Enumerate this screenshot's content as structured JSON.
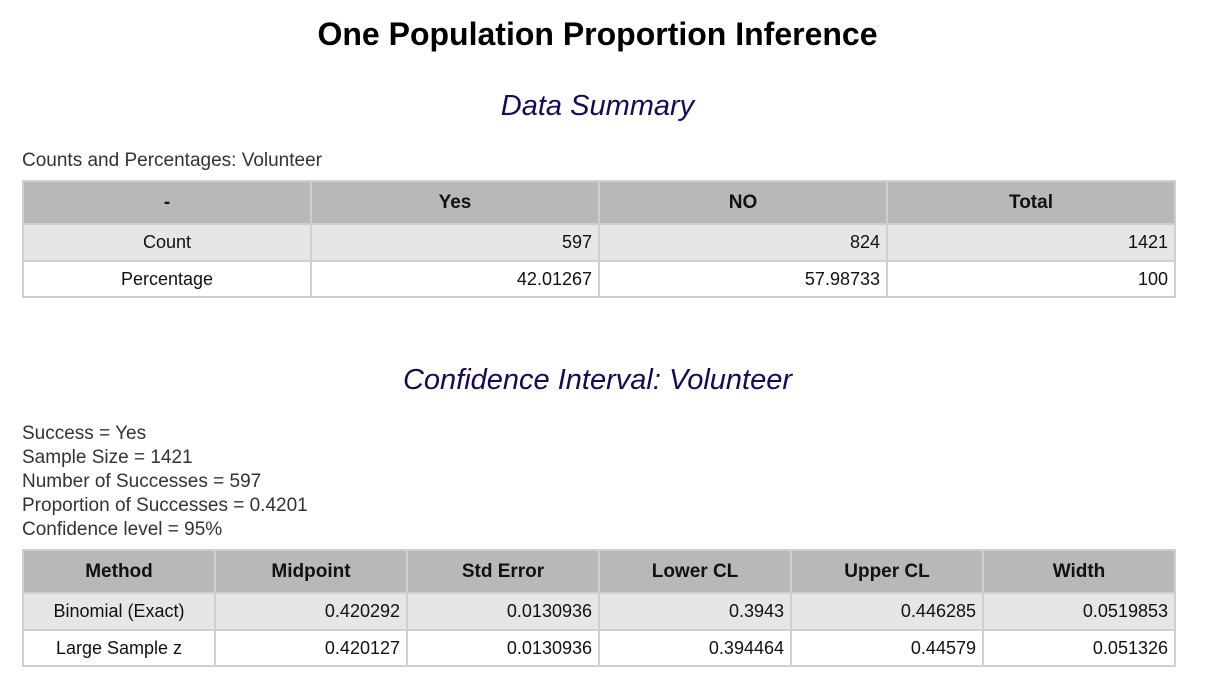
{
  "page_title": "One Population Proportion Inference",
  "data_summary": {
    "heading": "Data Summary",
    "caption": "Counts and Percentages: Volunteer",
    "headers": [
      "-",
      "Yes",
      "NO",
      "Total"
    ],
    "rows": [
      {
        "label": "Count",
        "values": [
          "597",
          "824",
          "1421"
        ]
      },
      {
        "label": "Percentage",
        "values": [
          "42.01267",
          "57.98733",
          "100"
        ]
      }
    ]
  },
  "confidence_interval": {
    "heading": "Confidence Interval: Volunteer",
    "lines": [
      "Success = Yes",
      "Sample Size = 1421",
      "Number of Successes = 597",
      "Proportion of Successes = 0.4201",
      "Confidence level = 95%"
    ],
    "headers": [
      "Method",
      "Midpoint",
      "Std Error",
      "Lower CL",
      "Upper CL",
      "Width"
    ],
    "rows": [
      {
        "label": "Binomial (Exact)",
        "values": [
          "0.420292",
          "0.0130936",
          "0.3943",
          "0.446285",
          "0.0519853"
        ]
      },
      {
        "label": "Large Sample z",
        "values": [
          "0.420127",
          "0.0130936",
          "0.394464",
          "0.44579",
          "0.051326"
        ]
      }
    ]
  },
  "colors": {
    "section_heading": "#140a5a",
    "header_bg": "#b8b8b8",
    "shaded_row_bg": "#e6e6e6",
    "border": "#cfcfcf"
  }
}
